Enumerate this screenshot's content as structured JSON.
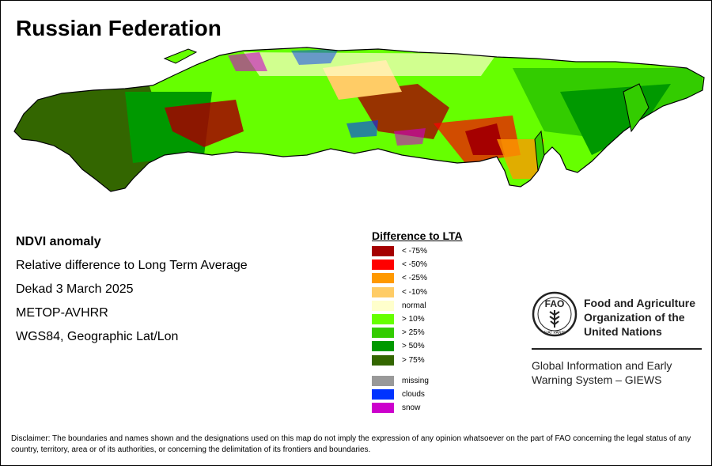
{
  "title": "Russian Federation",
  "info": {
    "product": "NDVI anomaly",
    "description": "Relative difference to Long Term Average",
    "period": "Dekad 3 March 2025",
    "sensor": "METOP-AVHRR",
    "projection": "WGS84, Geographic Lat/Lon"
  },
  "legend": {
    "title": "Difference to LTA",
    "classes": [
      {
        "label": "< -75%",
        "color": "#a50000"
      },
      {
        "label": "< -50%",
        "color": "#ff0000"
      },
      {
        "label": "< -25%",
        "color": "#ff9900"
      },
      {
        "label": "< -10%",
        "color": "#ffcc66"
      },
      {
        "label": "normal",
        "color": "#ffffcc"
      },
      {
        "label": "> 10%",
        "color": "#66ff00"
      },
      {
        "label": "> 25%",
        "color": "#33cc00"
      },
      {
        "label": "> 50%",
        "color": "#009900"
      },
      {
        "label": "> 75%",
        "color": "#336600"
      }
    ],
    "special": [
      {
        "label": "missing",
        "color": "#999999"
      },
      {
        "label": "clouds",
        "color": "#0033ff"
      },
      {
        "label": "snow",
        "color": "#cc00cc"
      }
    ]
  },
  "organization": {
    "name": "Food and Agriculture\nOrganization of the\nUnited Nations",
    "logo_text": "FAO",
    "logo_motto": "FIAT PANIS",
    "system": "Global Information and Early\nWarning System – GIEWS"
  },
  "disclaimer": "Disclaimer: The boundaries and names shown and the designations used on this map do not imply the expression of any opinion whatsoever on the part of FAO concerning the legal status of any country, territory, area or of its authorities, or concerning the delimitation of its frontiers and boundaries."
}
